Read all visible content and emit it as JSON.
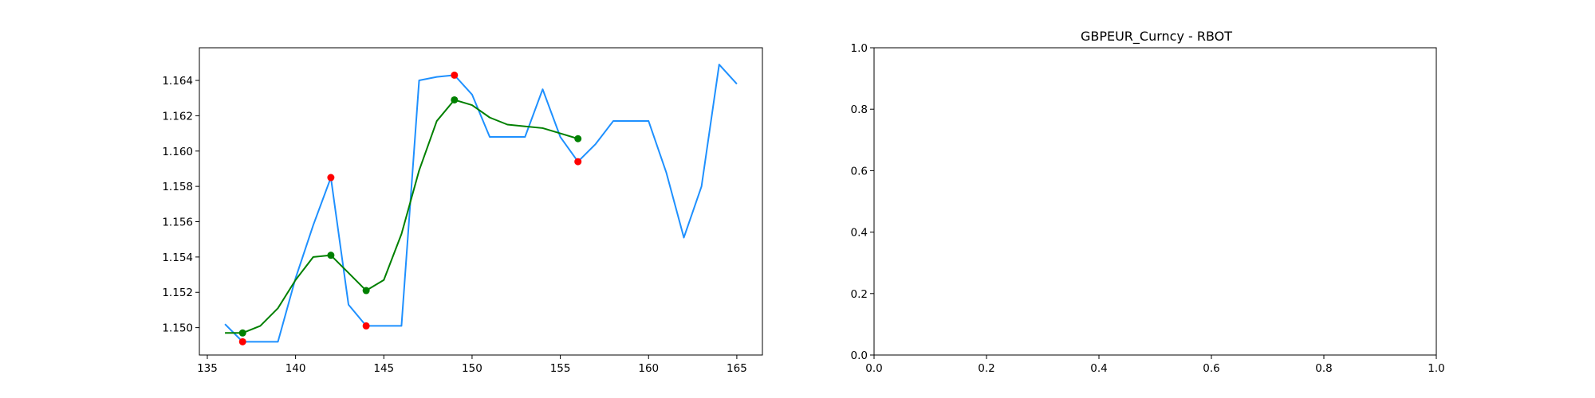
{
  "chart_data": [
    {
      "type": "line",
      "title": "",
      "xlabel": "",
      "ylabel": "",
      "xlim": [
        134.55,
        166.45
      ],
      "ylim": [
        1.14845,
        1.16585
      ],
      "xticks": [
        "135",
        "140",
        "145",
        "150",
        "155",
        "160",
        "165"
      ],
      "yticks": [
        "1.150",
        "1.152",
        "1.154",
        "1.156",
        "1.158",
        "1.160",
        "1.162",
        "1.164"
      ],
      "grid": false,
      "series": [
        {
          "kind": "line",
          "color": "#1e90ff",
          "x": [
            136,
            137,
            138,
            139,
            140,
            141,
            142,
            143,
            144,
            145,
            146,
            147,
            148,
            149,
            150,
            151,
            152,
            153,
            154,
            155,
            156,
            157,
            158,
            159,
            160,
            161,
            162,
            163,
            164,
            165
          ],
          "y": [
            1.1502,
            1.1492,
            1.1492,
            1.1492,
            1.1528,
            1.1558,
            1.1585,
            1.1513,
            1.1501,
            1.1501,
            1.1501,
            1.164,
            1.1642,
            1.1643,
            1.1632,
            1.1608,
            1.1608,
            1.1608,
            1.1635,
            1.1608,
            1.1594,
            1.1604,
            1.1617,
            1.1617,
            1.1617,
            1.1588,
            1.1551,
            1.158,
            1.1649,
            1.1638
          ]
        },
        {
          "kind": "line",
          "color": "#008000",
          "x": [
            136,
            137,
            138,
            139,
            140,
            141,
            142,
            143,
            144,
            145,
            146,
            147,
            148,
            149,
            150,
            151,
            152,
            153,
            154,
            155,
            156
          ],
          "y": [
            1.1497,
            1.1497,
            1.1501,
            1.1511,
            1.1527,
            1.154,
            1.1541,
            1.1531,
            1.1521,
            1.1527,
            1.1553,
            1.1589,
            1.1617,
            1.1629,
            1.1626,
            1.1619,
            1.1615,
            1.1614,
            1.1613,
            1.161,
            1.1607
          ]
        },
        {
          "kind": "scatter",
          "color": "#ff0000",
          "x": [
            137,
            142,
            144,
            149,
            156
          ],
          "y": [
            1.1492,
            1.1585,
            1.1501,
            1.1643,
            1.1594
          ]
        },
        {
          "kind": "scatter",
          "color": "#008000",
          "x": [
            137,
            142,
            144,
            149,
            156
          ],
          "y": [
            1.1497,
            1.1541,
            1.1521,
            1.1629,
            1.1607
          ]
        }
      ]
    },
    {
      "type": "line",
      "title": "GBPEUR_Curncy - RBOT",
      "xlabel": "",
      "ylabel": "",
      "xlim": [
        0.0,
        1.0
      ],
      "ylim": [
        0.0,
        1.0
      ],
      "xticks": [
        "0.0",
        "0.2",
        "0.4",
        "0.6",
        "0.8",
        "1.0"
      ],
      "yticks": [
        "0.0",
        "0.2",
        "0.4",
        "0.6",
        "0.8",
        "1.0"
      ],
      "grid": false,
      "series": []
    }
  ]
}
